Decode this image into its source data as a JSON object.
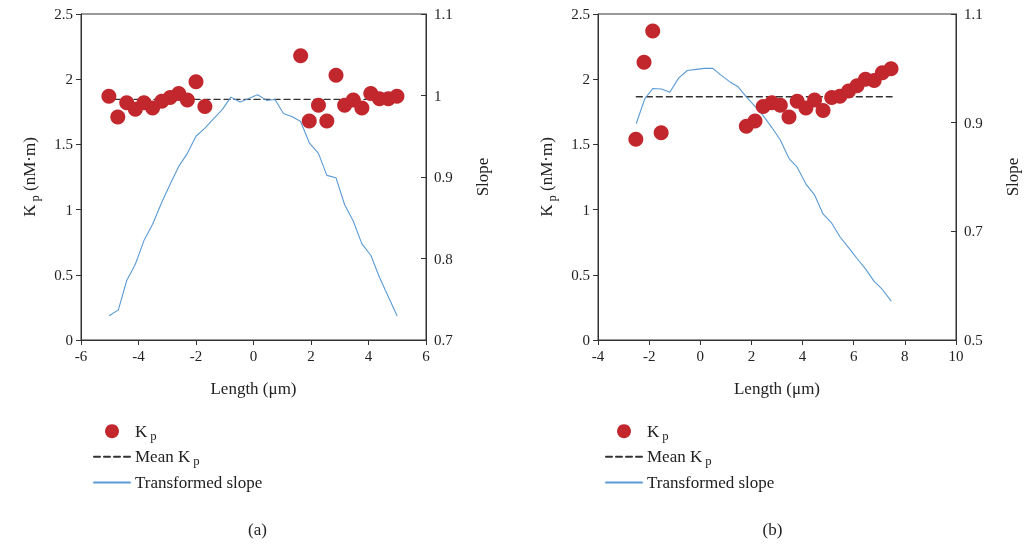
{
  "chart_data": [
    {
      "type": "scatter",
      "xlabel": "Length (μm)",
      "ylabel": "K$_{p}$ (nM·m)",
      "y2label": "Slope",
      "annotations": [
        "(a)"
      ],
      "xlim": [
        -6,
        6
      ],
      "xticks": [
        -6,
        -4,
        -2,
        0,
        2,
        4,
        6
      ],
      "ylim": [
        0,
        2.5
      ],
      "yticks": [
        0,
        0.5,
        1,
        1.5,
        2,
        2.5
      ],
      "y2lim": [
        0.7,
        1.1
      ],
      "y2ticks": [
        0.7,
        0.8,
        0.9,
        1,
        1.1
      ],
      "legend": "bottom",
      "grid": false,
      "series": [
        {
          "name": "K$_{p}$",
          "type": "scatter",
          "marker": "circle",
          "color": "#c1272d",
          "x": [
            -5.03,
            -4.72,
            -4.41,
            -4.11,
            -3.81,
            -3.51,
            -3.19,
            -2.9,
            -2.6,
            -2.3,
            -2.0,
            -1.69,
            1.64,
            1.94,
            2.26,
            2.55,
            2.87,
            3.17,
            3.47,
            3.77,
            4.08,
            4.38,
            4.69,
            4.99
          ],
          "values": [
            1.87,
            1.71,
            1.82,
            1.77,
            1.82,
            1.78,
            1.83,
            1.86,
            1.89,
            1.84,
            1.98,
            1.79,
            2.18,
            1.68,
            1.8,
            1.68,
            2.03,
            1.8,
            1.84,
            1.78,
            1.89,
            1.85,
            1.85,
            1.87
          ]
        },
        {
          "name": "Mean K$_{p}$",
          "type": "line",
          "marker": "none",
          "line_style": "dashed",
          "color": "#333333",
          "x": [
            -4.85,
            4.1
          ],
          "values": [
            1.845,
            1.845
          ]
        },
        {
          "name": "Transformed slope",
          "type": "line",
          "marker": "none",
          "line_style": "solid",
          "color": "#5b9bd5",
          "axis": "y2",
          "x": [
            -5.01,
            -4.7,
            -4.41,
            -4.11,
            -3.81,
            -3.51,
            -3.19,
            -2.9,
            -2.6,
            -2.3,
            -2.0,
            -1.69,
            -1.4,
            -1.08,
            -0.79,
            -0.47,
            -0.18,
            0.14,
            0.46,
            0.75,
            1.04,
            1.35,
            1.64,
            1.94,
            2.26,
            2.55,
            2.87,
            3.17,
            3.47,
            3.77,
            4.08,
            4.38,
            4.69,
            4.99
          ],
          "values": [
            0.73,
            0.737,
            0.773,
            0.793,
            0.822,
            0.842,
            0.869,
            0.891,
            0.913,
            0.929,
            0.95,
            0.96,
            0.971,
            0.983,
            0.998,
            0.992,
            0.996,
            1.001,
            0.994,
            0.995,
            0.978,
            0.974,
            0.968,
            0.942,
            0.929,
            0.902,
            0.899,
            0.866,
            0.846,
            0.818,
            0.804,
            0.777,
            0.753,
            0.73
          ]
        }
      ]
    },
    {
      "type": "scatter",
      "xlabel": "Length (μm)",
      "ylabel": "K$_{p}$ (nM·m)",
      "y2label": "Slope",
      "annotations": [
        "(b)"
      ],
      "xlim": [
        -4,
        10
      ],
      "xticks": [
        -4,
        -2,
        0,
        2,
        4,
        6,
        8,
        10
      ],
      "ylim": [
        0,
        2.5
      ],
      "yticks": [
        0,
        0.5,
        1,
        1.5,
        2,
        2.5
      ],
      "y2lim": [
        0.5,
        1.1
      ],
      "y2ticks": [
        0.5,
        0.7,
        0.9,
        1.1
      ],
      "legend": "bottom",
      "grid": false,
      "series": [
        {
          "name": "K$_{p}$",
          "type": "scatter",
          "marker": "circle",
          "color": "#c1272d",
          "x": [
            -2.52,
            -2.2,
            -1.86,
            -1.53,
            1.8,
            2.14,
            2.46,
            2.8,
            3.13,
            3.47,
            3.79,
            4.13,
            4.47,
            4.8,
            5.14,
            5.46,
            5.8,
            6.13,
            6.46,
            6.8,
            7.12,
            7.46
          ],
          "values": [
            1.54,
            2.13,
            2.37,
            1.59,
            1.64,
            1.68,
            1.79,
            1.82,
            1.8,
            1.71,
            1.83,
            1.78,
            1.84,
            1.76,
            1.86,
            1.87,
            1.91,
            1.95,
            2.0,
            1.99,
            2.05,
            2.08
          ]
        },
        {
          "name": "Mean K$_{p}$",
          "type": "line",
          "marker": "none",
          "line_style": "dashed",
          "color": "#333333",
          "x": [
            -2.5,
            7.5
          ],
          "values": [
            1.865,
            1.865
          ]
        },
        {
          "name": "Transformed slope",
          "type": "line",
          "marker": "none",
          "line_style": "solid",
          "color": "#5b9bd5",
          "axis": "y2",
          "x": [
            -2.5,
            -2.17,
            -1.85,
            -1.52,
            -1.19,
            -0.85,
            -0.51,
            -0.16,
            0.15,
            0.49,
            0.82,
            1.16,
            1.48,
            1.81,
            2.14,
            2.46,
            2.8,
            3.13,
            3.47,
            3.79,
            4.13,
            4.47,
            4.8,
            5.14,
            5.46,
            5.8,
            6.13,
            6.46,
            6.8,
            7.12,
            7.46
          ],
          "values": [
            0.899,
            0.944,
            0.963,
            0.962,
            0.956,
            0.982,
            0.996,
            0.998,
            1.0,
            1.0,
            0.987,
            0.975,
            0.966,
            0.947,
            0.93,
            0.913,
            0.891,
            0.868,
            0.834,
            0.818,
            0.787,
            0.767,
            0.732,
            0.715,
            0.69,
            0.67,
            0.65,
            0.631,
            0.608,
            0.593,
            0.572
          ]
        }
      ]
    }
  ]
}
